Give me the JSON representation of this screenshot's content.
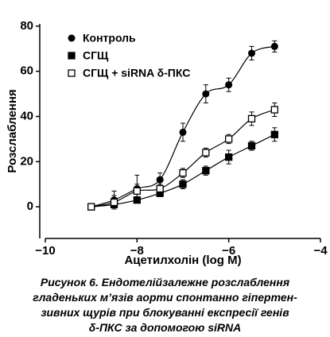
{
  "chart_data": {
    "type": "line",
    "x_label": "Ацетилхолін (log M)",
    "y_label": "Розслаблення",
    "x": [
      -9,
      -8.5,
      -8,
      -7.5,
      -7,
      -6.5,
      -6,
      -5.5,
      -5
    ],
    "series": [
      {
        "name": "Контроль",
        "color": "#000000",
        "marker": "circle",
        "values": [
          0,
          3,
          8,
          12,
          33,
          50,
          54,
          68,
          71
        ],
        "errors": [
          1,
          4,
          6,
          3,
          4,
          4,
          3,
          3,
          2.5
        ]
      },
      {
        "name": "СГЩ",
        "color": "#000000",
        "marker": "square",
        "values": [
          0,
          1,
          3,
          6,
          10,
          16,
          22,
          27,
          32
        ],
        "errors": [
          0.5,
          1,
          1,
          1.5,
          2,
          2,
          3,
          2,
          3
        ]
      },
      {
        "name": "СГЩ + siRNA δ-ПКС",
        "color": "#000000",
        "marker": "square-open",
        "values": [
          0,
          2,
          7,
          8,
          15,
          24,
          30,
          39,
          43
        ],
        "errors": [
          1,
          3,
          3,
          2,
          2,
          2,
          2,
          3,
          3
        ]
      }
    ],
    "xlim": [
      -10,
      -4
    ],
    "xticks": [
      {
        "value": -10,
        "label": "−10"
      },
      {
        "value": -8,
        "label": "−8"
      },
      {
        "value": -6,
        "label": "−6"
      },
      {
        "value": -4,
        "label": "−4"
      }
    ],
    "ylim": [
      -14,
      81
    ],
    "yticks": [
      0,
      20,
      40,
      60,
      80
    ],
    "legend": "top-left"
  },
  "caption": [
    "Рисунок 6. Ендотелійзалежне розслаблення",
    "гладеньких м’язів аорти спонтанно гіпертен-",
    "зивних щурів при блокуванні експресії генів",
    "δ-ПКС за допомогою siRNA"
  ]
}
